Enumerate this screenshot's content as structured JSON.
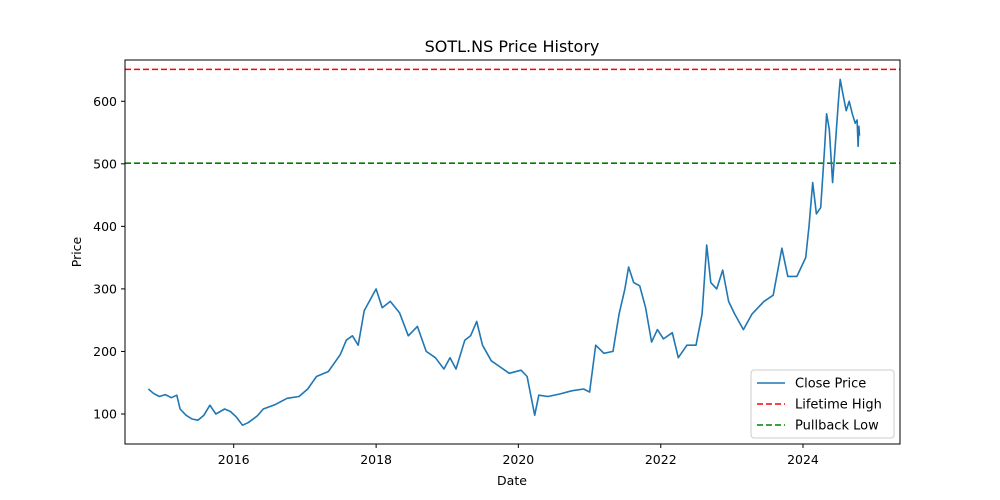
{
  "chart_data": {
    "type": "line",
    "title": "SOTL.NS Price History",
    "xlabel": "Date",
    "ylabel": "Price",
    "xlim": [
      "2014-06-22",
      "2025-05-13"
    ],
    "ylim": [
      52,
      666
    ],
    "x_ticks": [
      "2016",
      "2018",
      "2020",
      "2022",
      "2024"
    ],
    "y_ticks": [
      100,
      200,
      300,
      400,
      500,
      600
    ],
    "grid": false,
    "legend": "lower-right",
    "series": [
      {
        "name": "Close Price",
        "color": "#1f77b4",
        "style": "solid",
        "points": [
          [
            "2014-10-20",
            140
          ],
          [
            "2014-11-15",
            133
          ],
          [
            "2014-12-15",
            128
          ],
          [
            "2015-01-15",
            131
          ],
          [
            "2015-02-15",
            126
          ],
          [
            "2015-03-15",
            130
          ],
          [
            "2015-04-01",
            108
          ],
          [
            "2015-05-01",
            98
          ],
          [
            "2015-06-01",
            92
          ],
          [
            "2015-07-01",
            90
          ],
          [
            "2015-08-01",
            98
          ],
          [
            "2015-09-01",
            114
          ],
          [
            "2015-10-01",
            100
          ],
          [
            "2015-11-15",
            108
          ],
          [
            "2015-12-15",
            104
          ],
          [
            "2016-01-15",
            95
          ],
          [
            "2016-02-15",
            82
          ],
          [
            "2016-03-15",
            86
          ],
          [
            "2016-05-01",
            97
          ],
          [
            "2016-06-01",
            108
          ],
          [
            "2016-08-01",
            115
          ],
          [
            "2016-10-01",
            125
          ],
          [
            "2016-12-01",
            128
          ],
          [
            "2017-01-15",
            140
          ],
          [
            "2017-03-01",
            160
          ],
          [
            "2017-05-01",
            168
          ],
          [
            "2017-07-01",
            195
          ],
          [
            "2017-08-01",
            218
          ],
          [
            "2017-09-01",
            225
          ],
          [
            "2017-10-01",
            210
          ],
          [
            "2017-11-01",
            265
          ],
          [
            "2018-01-01",
            300
          ],
          [
            "2018-02-01",
            270
          ],
          [
            "2018-03-15",
            280
          ],
          [
            "2018-05-01",
            262
          ],
          [
            "2018-06-15",
            225
          ],
          [
            "2018-08-01",
            240
          ],
          [
            "2018-09-15",
            200
          ],
          [
            "2018-11-01",
            190
          ],
          [
            "2018-12-15",
            172
          ],
          [
            "2019-01-15",
            190
          ],
          [
            "2019-02-15",
            172
          ],
          [
            "2019-04-01",
            218
          ],
          [
            "2019-05-01",
            225
          ],
          [
            "2019-06-01",
            248
          ],
          [
            "2019-07-01",
            210
          ],
          [
            "2019-08-15",
            185
          ],
          [
            "2019-10-01",
            175
          ],
          [
            "2019-11-15",
            165
          ],
          [
            "2020-01-15",
            170
          ],
          [
            "2020-02-15",
            160
          ],
          [
            "2020-03-25",
            98
          ],
          [
            "2020-04-15",
            130
          ],
          [
            "2020-06-01",
            128
          ],
          [
            "2020-08-01",
            132
          ],
          [
            "2020-10-01",
            137
          ],
          [
            "2020-12-01",
            140
          ],
          [
            "2021-01-01",
            135
          ],
          [
            "2021-02-01",
            210
          ],
          [
            "2021-03-15",
            197
          ],
          [
            "2021-05-01",
            200
          ],
          [
            "2021-06-01",
            260
          ],
          [
            "2021-07-01",
            300
          ],
          [
            "2021-07-20",
            335
          ],
          [
            "2021-08-15",
            310
          ],
          [
            "2021-09-15",
            305
          ],
          [
            "2021-10-15",
            270
          ],
          [
            "2021-11-15",
            215
          ],
          [
            "2021-12-15",
            235
          ],
          [
            "2022-01-15",
            220
          ],
          [
            "2022-03-01",
            230
          ],
          [
            "2022-04-01",
            190
          ],
          [
            "2022-05-15",
            210
          ],
          [
            "2022-07-01",
            210
          ],
          [
            "2022-08-01",
            260
          ],
          [
            "2022-08-25",
            370
          ],
          [
            "2022-09-15",
            310
          ],
          [
            "2022-10-15",
            300
          ],
          [
            "2022-11-15",
            330
          ],
          [
            "2022-12-15",
            280
          ],
          [
            "2023-01-15",
            260
          ],
          [
            "2023-03-01",
            235
          ],
          [
            "2023-04-15",
            260
          ],
          [
            "2023-06-15",
            280
          ],
          [
            "2023-08-01",
            290
          ],
          [
            "2023-09-15",
            365
          ],
          [
            "2023-10-15",
            320
          ],
          [
            "2023-12-01",
            320
          ],
          [
            "2024-01-15",
            350
          ],
          [
            "2024-02-01",
            400
          ],
          [
            "2024-02-20",
            470
          ],
          [
            "2024-03-10",
            420
          ],
          [
            "2024-04-01",
            430
          ],
          [
            "2024-04-20",
            520
          ],
          [
            "2024-05-01",
            580
          ],
          [
            "2024-05-15",
            555
          ],
          [
            "2024-06-01",
            470
          ],
          [
            "2024-06-15",
            530
          ],
          [
            "2024-07-01",
            600
          ],
          [
            "2024-07-10",
            635
          ],
          [
            "2024-07-25",
            610
          ],
          [
            "2024-08-10",
            585
          ],
          [
            "2024-08-25",
            600
          ],
          [
            "2024-09-10",
            580
          ],
          [
            "2024-09-25",
            565
          ],
          [
            "2024-10-05",
            570
          ],
          [
            "2024-10-10",
            528
          ],
          [
            "2024-10-14",
            560
          ],
          [
            "2024-10-17",
            545
          ]
        ]
      },
      {
        "name": "Lifetime High",
        "color": "#ff0000",
        "style": "dashed",
        "y": 651
      },
      {
        "name": "Pullback Low",
        "color": "#008000",
        "style": "dashed",
        "y": 501
      }
    ]
  }
}
